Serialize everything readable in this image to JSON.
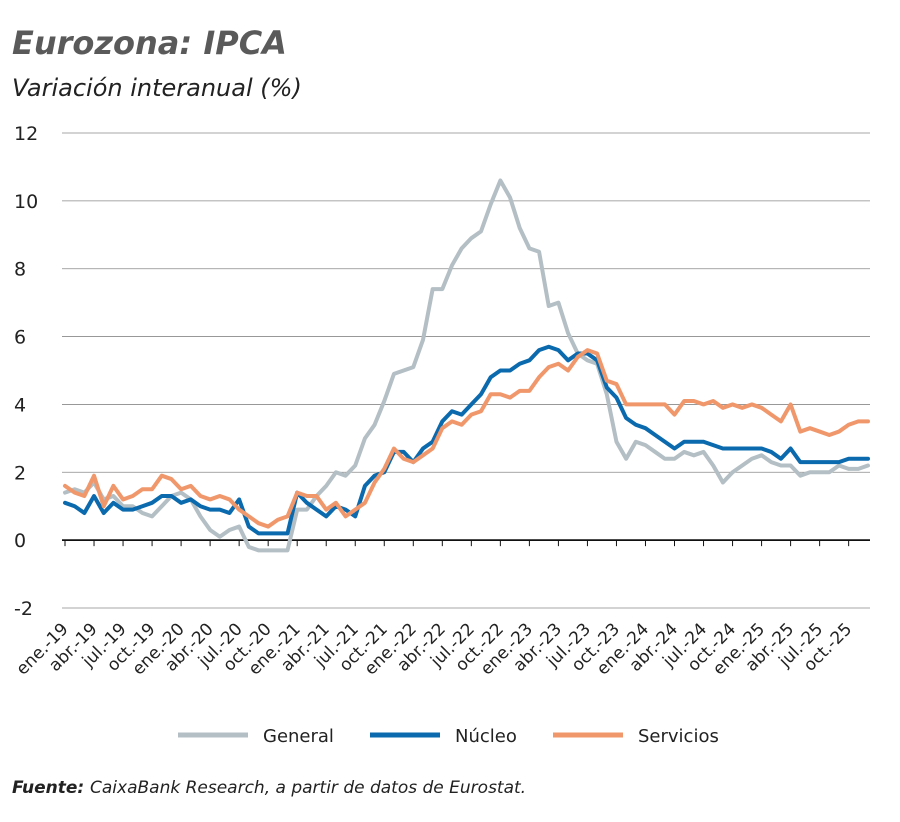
{
  "chart_data": {
    "type": "line",
    "title": "Eurozona: IPCA",
    "subtitle": "Variación interanual (%)",
    "source_label": "Fuente:",
    "source_text": "CaixaBank Research, a partir de datos de Eurostat.",
    "categories": [
      "ene.-19",
      null,
      null,
      "abr.-19",
      null,
      null,
      "jul.-19",
      null,
      null,
      "oct.-19",
      null,
      null,
      "ene.-20",
      null,
      null,
      "abr.-20",
      null,
      null,
      "jul.-20",
      null,
      null,
      "oct.-20",
      null,
      null,
      "ene.-21",
      null,
      null,
      "abr.-21",
      null,
      null,
      "jul.-21",
      null,
      null,
      "oct.-21",
      null,
      null,
      "ene.-22",
      null,
      null,
      "abr.-22",
      null,
      null,
      "jul.-22",
      null,
      null,
      "oct.-22",
      null,
      null,
      "ene.-23",
      null,
      null,
      "abr.-23",
      null,
      null,
      "jul.-23",
      null,
      null,
      "oct.-23",
      null,
      null,
      "ene.-24",
      null,
      null,
      "abr.-24",
      null,
      null,
      "jul.-24",
      null,
      null,
      "oct.-24",
      null,
      null,
      "ene.-25",
      null,
      null,
      "abr.-25",
      null,
      null,
      "jul.-25",
      null,
      null,
      "oct.-25",
      null,
      null
    ],
    "series": [
      {
        "name": "General",
        "color": "#b3bfc4",
        "values": [
          1.4,
          1.5,
          1.4,
          1.7,
          1.2,
          1.3,
          1.0,
          1.0,
          0.8,
          0.7,
          1.0,
          1.3,
          1.4,
          1.2,
          0.7,
          0.3,
          0.1,
          0.3,
          0.4,
          -0.2,
          -0.3,
          -0.3,
          -0.3,
          -0.3,
          0.9,
          0.9,
          1.3,
          1.6,
          2.0,
          1.9,
          2.2,
          3.0,
          3.4,
          4.1,
          4.9,
          5.0,
          5.1,
          5.9,
          7.4,
          7.4,
          8.1,
          8.6,
          8.9,
          9.1,
          9.9,
          10.6,
          10.1,
          9.2,
          8.6,
          8.5,
          6.9,
          7.0,
          6.1,
          5.5,
          5.3,
          5.2,
          4.3,
          2.9,
          2.4,
          2.9,
          2.8,
          2.6,
          2.4,
          2.4,
          2.6,
          2.5,
          2.6,
          2.2,
          1.7,
          2.0,
          2.2,
          2.4,
          2.5,
          2.3,
          2.2,
          2.2,
          1.9,
          2.0,
          2.0,
          2.0,
          2.2,
          2.1,
          2.1,
          2.2
        ]
      },
      {
        "name": "Núcleo",
        "color": "#0a6aad",
        "values": [
          1.1,
          1.0,
          0.8,
          1.3,
          0.8,
          1.1,
          0.9,
          0.9,
          1.0,
          1.1,
          1.3,
          1.3,
          1.1,
          1.2,
          1.0,
          0.9,
          0.9,
          0.8,
          1.2,
          0.4,
          0.2,
          0.2,
          0.2,
          0.2,
          1.4,
          1.1,
          0.9,
          0.7,
          1.0,
          0.9,
          0.7,
          1.6,
          1.9,
          2.0,
          2.6,
          2.6,
          2.3,
          2.7,
          2.9,
          3.5,
          3.8,
          3.7,
          4.0,
          4.3,
          4.8,
          5.0,
          5.0,
          5.2,
          5.3,
          5.6,
          5.7,
          5.6,
          5.3,
          5.5,
          5.5,
          5.3,
          4.5,
          4.2,
          3.6,
          3.4,
          3.3,
          3.1,
          2.9,
          2.7,
          2.9,
          2.9,
          2.9,
          2.8,
          2.7,
          2.7,
          2.7,
          2.7,
          2.7,
          2.6,
          2.4,
          2.7,
          2.3,
          2.3,
          2.3,
          2.3,
          2.3,
          2.4,
          2.4,
          2.4
        ]
      },
      {
        "name": "Servicios",
        "color": "#f0976b",
        "values": [
          1.6,
          1.4,
          1.3,
          1.9,
          1.0,
          1.6,
          1.2,
          1.3,
          1.5,
          1.5,
          1.9,
          1.8,
          1.5,
          1.6,
          1.3,
          1.2,
          1.3,
          1.2,
          0.9,
          0.7,
          0.5,
          0.4,
          0.6,
          0.7,
          1.4,
          1.3,
          1.3,
          0.9,
          1.1,
          0.7,
          0.9,
          1.1,
          1.7,
          2.1,
          2.7,
          2.4,
          2.3,
          2.5,
          2.7,
          3.3,
          3.5,
          3.4,
          3.7,
          3.8,
          4.3,
          4.3,
          4.2,
          4.4,
          4.4,
          4.8,
          5.1,
          5.2,
          5.0,
          5.4,
          5.6,
          5.5,
          4.7,
          4.6,
          4.0,
          4.0,
          4.0,
          4.0,
          4.0,
          3.7,
          4.1,
          4.1,
          4.0,
          4.1,
          3.9,
          4.0,
          3.9,
          4.0,
          3.9,
          3.7,
          3.5,
          4.0,
          3.2,
          3.3,
          3.2,
          3.1,
          3.2,
          3.4,
          3.5,
          3.5
        ]
      }
    ],
    "ylim": [
      -2,
      12
    ],
    "yticks": [
      -2,
      0,
      2,
      4,
      6,
      8,
      10,
      12
    ],
    "grid": true
  }
}
